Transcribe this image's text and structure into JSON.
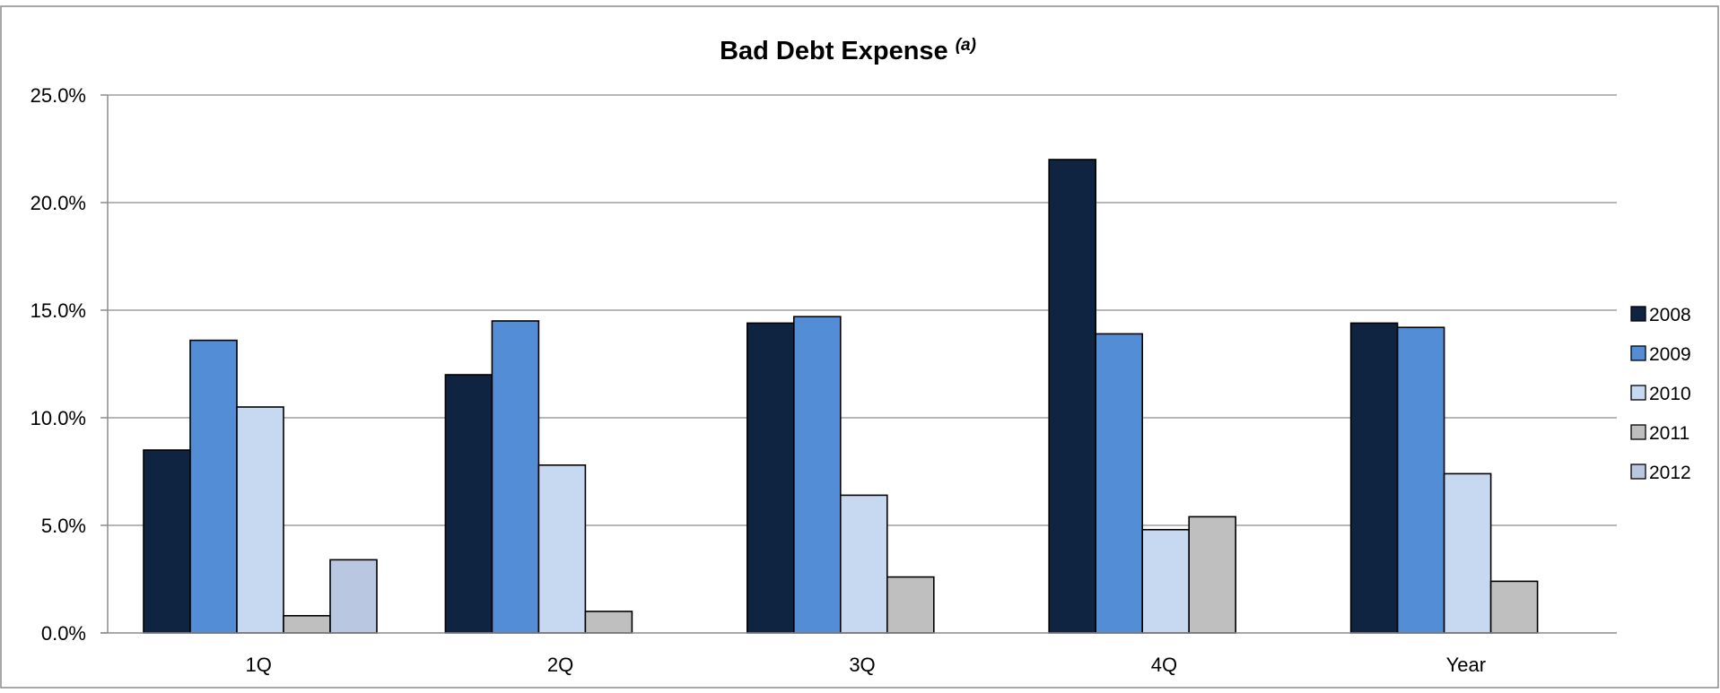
{
  "chart_data": {
    "type": "bar",
    "title": "Bad Debt Expense",
    "title_superscript": "(a)",
    "xlabel": "",
    "ylabel": "",
    "ylim": [
      0,
      25
    ],
    "y_tick_values": [
      0,
      5,
      10,
      15,
      20,
      25
    ],
    "y_tick_labels": [
      "0.0%",
      "5.0%",
      "10.0%",
      "15.0%",
      "20.0%",
      "25.0%"
    ],
    "categories": [
      "1Q",
      "2Q",
      "3Q",
      "4Q",
      "Year"
    ],
    "grid": true,
    "legend_position": "right",
    "series": [
      {
        "name": "2008",
        "color": "#0f2440",
        "values": [
          8.5,
          12.0,
          14.4,
          22.0,
          14.4
        ]
      },
      {
        "name": "2009",
        "color": "#538dd5",
        "values": [
          13.6,
          14.5,
          14.7,
          13.9,
          14.2
        ]
      },
      {
        "name": "2010",
        "color": "#c6d9f1",
        "values": [
          10.5,
          7.8,
          6.4,
          4.8,
          7.4
        ]
      },
      {
        "name": "2011",
        "color": "#bfbfbf",
        "values": [
          0.8,
          1.0,
          2.6,
          5.4,
          2.4
        ]
      },
      {
        "name": "2012",
        "color": "#b9c7e0",
        "values": [
          3.4,
          null,
          null,
          null,
          null
        ]
      }
    ]
  }
}
